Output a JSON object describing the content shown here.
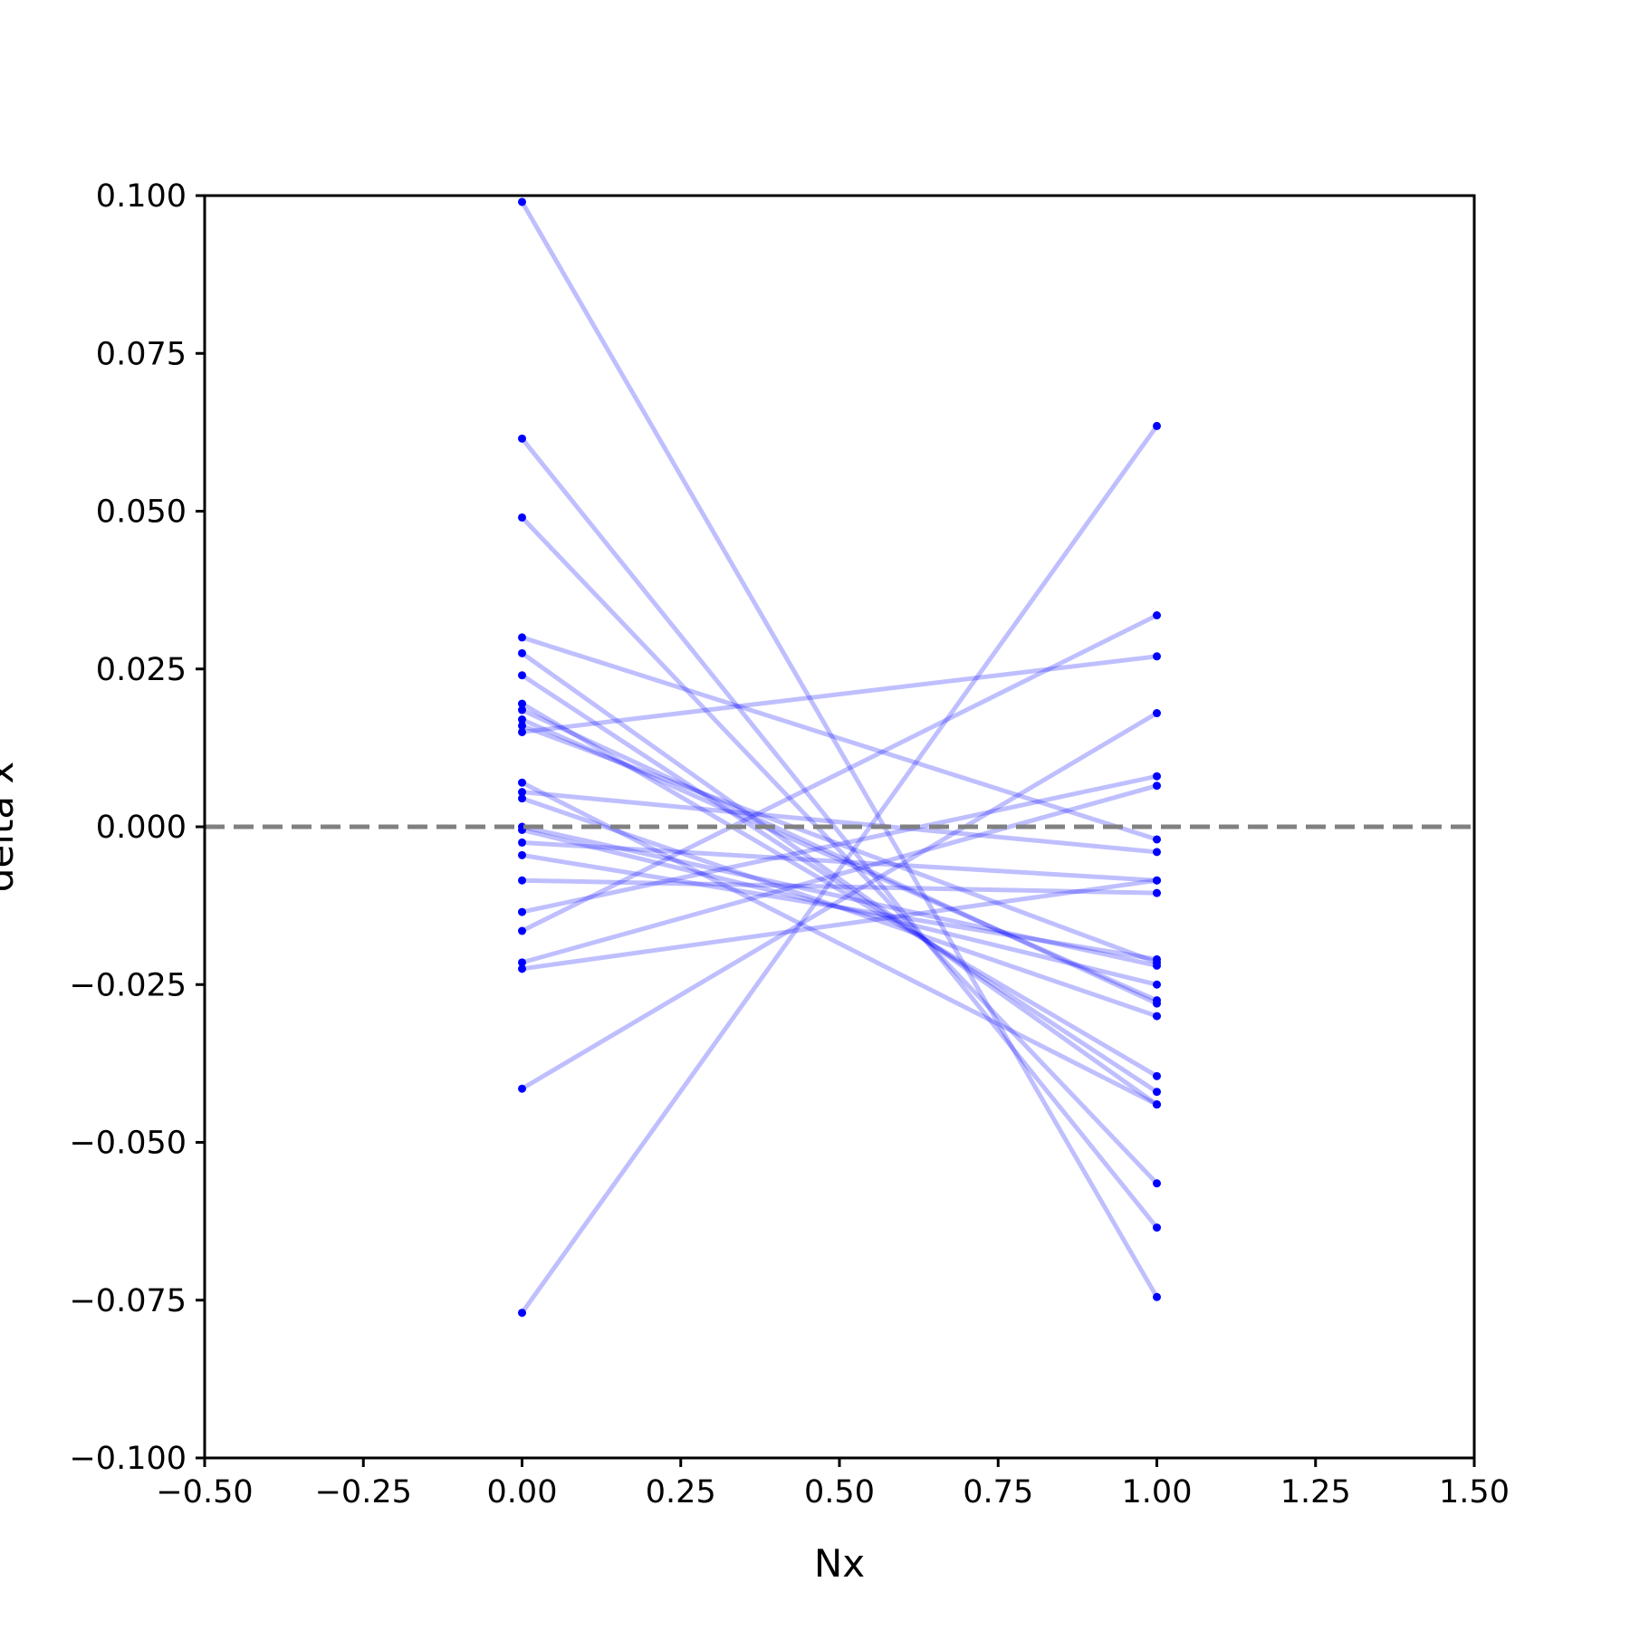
{
  "chart_data": {
    "type": "line",
    "title": "",
    "xlabel": "Nx",
    "ylabel": "delta x",
    "xlim": [
      -0.5,
      1.5
    ],
    "ylim": [
      -0.1,
      0.1
    ],
    "x_ticks": [
      -0.5,
      -0.25,
      0.0,
      0.25,
      0.5,
      0.75,
      1.0,
      1.25,
      1.5
    ],
    "x_tick_labels": [
      "−0.50",
      "−0.25",
      "0.00",
      "0.25",
      "0.50",
      "0.75",
      "1.00",
      "1.25",
      "1.50"
    ],
    "y_ticks": [
      0.1,
      0.075,
      0.05,
      0.025,
      0.0,
      -0.025,
      -0.05,
      -0.075,
      -0.1
    ],
    "y_tick_labels": [
      "0.100",
      "0.075",
      "0.050",
      "0.025",
      "0.000",
      "−0.025",
      "−0.050",
      "−0.075",
      "−0.100"
    ],
    "grid": false,
    "reference_line": {
      "y": 0.0,
      "style": "dashed",
      "color": "#808080"
    },
    "colors": {
      "series": "#0000ff",
      "line_opacity": 0.25
    },
    "x": [
      0,
      1
    ],
    "series": [
      {
        "values": [
          0.099,
          -0.0745
        ]
      },
      {
        "values": [
          0.0615,
          -0.0635
        ]
      },
      {
        "values": [
          0.049,
          -0.0565
        ]
      },
      {
        "values": [
          0.03,
          -0.002
        ]
      },
      {
        "values": [
          0.0275,
          -0.044
        ]
      },
      {
        "values": [
          0.024,
          -0.042
        ]
      },
      {
        "values": [
          0.0195,
          -0.0395
        ]
      },
      {
        "values": [
          0.0185,
          -0.028
        ]
      },
      {
        "values": [
          0.017,
          -0.0275
        ]
      },
      {
        "values": [
          0.016,
          -0.0215
        ]
      },
      {
        "values": [
          0.015,
          0.027
        ]
      },
      {
        "values": [
          0.007,
          -0.044
        ]
      },
      {
        "values": [
          0.0055,
          -0.004
        ]
      },
      {
        "values": [
          0.0045,
          -0.03
        ]
      },
      {
        "values": [
          0.0,
          -0.022
        ]
      },
      {
        "values": [
          -0.0005,
          -0.025
        ]
      },
      {
        "values": [
          -0.0025,
          -0.0085
        ]
      },
      {
        "values": [
          -0.0045,
          -0.021
        ]
      },
      {
        "values": [
          -0.0085,
          -0.0105
        ]
      },
      {
        "values": [
          -0.0135,
          0.008
        ]
      },
      {
        "values": [
          -0.0165,
          0.0335
        ]
      },
      {
        "values": [
          -0.0215,
          0.0065
        ]
      },
      {
        "values": [
          -0.0225,
          -0.0085
        ]
      },
      {
        "values": [
          -0.0415,
          0.018
        ]
      },
      {
        "values": [
          -0.077,
          0.0635
        ]
      }
    ]
  }
}
